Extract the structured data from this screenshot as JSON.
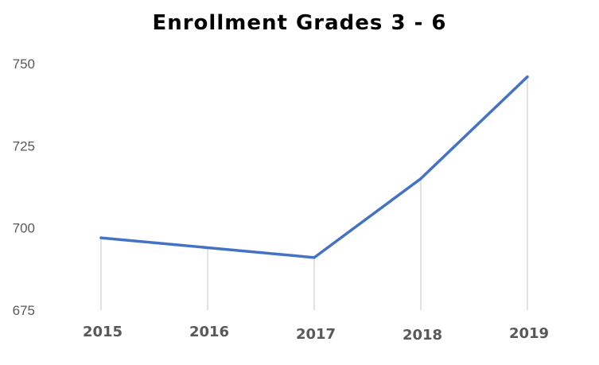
{
  "chart_data": {
    "type": "line",
    "title": "Enrollment Grades 3 - 6",
    "categories": [
      "2015",
      "2016",
      "2017",
      "2018",
      "2019"
    ],
    "series": [
      {
        "values": [
          697,
          694,
          691,
          715,
          746
        ]
      }
    ],
    "yticks": [
      "675",
      "700",
      "725",
      "750"
    ],
    "ylim": [
      675,
      750
    ],
    "xlabel": "",
    "ylabel": "",
    "grid": false,
    "drop_lines": true,
    "legend": "none",
    "colors": {
      "series": "#4472c4",
      "drop_lines": "#d9d9d9",
      "tick_labels": "#595959"
    }
  }
}
